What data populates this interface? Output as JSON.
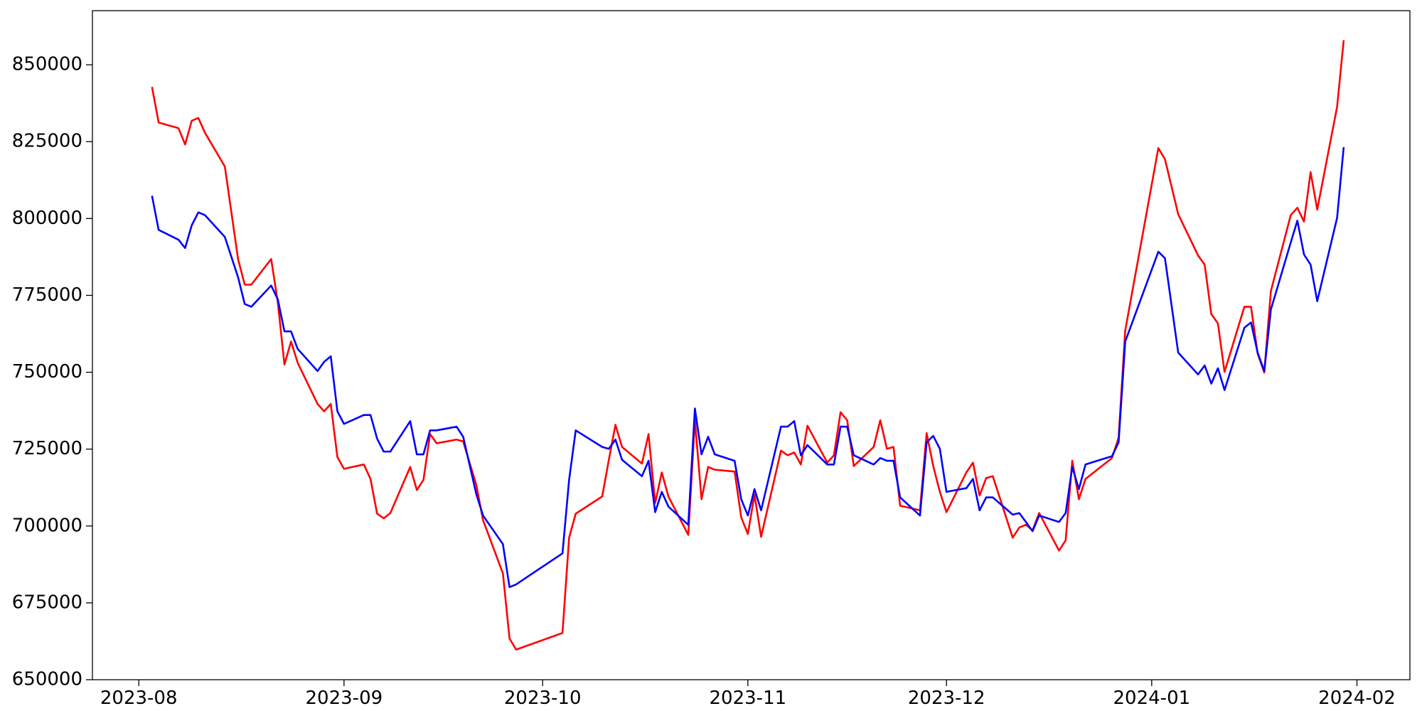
{
  "chart_data": {
    "type": "line",
    "x": [
      2,
      3,
      6,
      7,
      8,
      9,
      10,
      13,
      15,
      16,
      17,
      20,
      21,
      22,
      23,
      24,
      27,
      28,
      29,
      30,
      31,
      34,
      35,
      36,
      37,
      38,
      41,
      42,
      43,
      44,
      45,
      48,
      49,
      51,
      52,
      55,
      56,
      57,
      64,
      65,
      66,
      70,
      71,
      72,
      73,
      76,
      77,
      78,
      79,
      80,
      83,
      84,
      85,
      86,
      87,
      90,
      91,
      92,
      93,
      94,
      97,
      98,
      99,
      100,
      101,
      104,
      105,
      106,
      107,
      108,
      111,
      112,
      113,
      114,
      115,
      118,
      119,
      120,
      121,
      122,
      125,
      126,
      127,
      128,
      129,
      132,
      133,
      134,
      135,
      136,
      139,
      140,
      141,
      142,
      143,
      147,
      148,
      149,
      154,
      155,
      157,
      160,
      161,
      162,
      163,
      164,
      167,
      168,
      169,
      170,
      171,
      174,
      175,
      176,
      177,
      178,
      181,
      182
    ],
    "series": [
      {
        "color": "#ff0000",
        "values": [
          842800,
          831200,
          829400,
          824100,
          831800,
          832700,
          827900,
          816900,
          786800,
          778500,
          778500,
          786800,
          772800,
          752500,
          760000,
          753100,
          739700,
          737300,
          739700,
          722400,
          718600,
          720000,
          715300,
          704000,
          702500,
          704200,
          719200,
          711700,
          715000,
          729900,
          726900,
          728100,
          727500,
          713200,
          701900,
          684600,
          663400,
          659800,
          665200,
          696200,
          704000,
          709600,
          721500,
          732900,
          725700,
          720300,
          729900,
          707500,
          717400,
          709600,
          697100,
          734400,
          708700,
          719200,
          718300,
          717700,
          702800,
          697400,
          710200,
          696500,
          724500,
          723000,
          723900,
          720000,
          732600,
          720600,
          723000,
          737000,
          734400,
          719500,
          725700,
          734400,
          725100,
          725700,
          706600,
          705100,
          730200,
          719500,
          711100,
          704500,
          717400,
          720600,
          709900,
          715600,
          716200,
          696200,
          699500,
          700400,
          698600,
          704200,
          692000,
          695300,
          721200,
          708700,
          715300,
          722100,
          728700,
          763600,
          822900,
          819300,
          801400,
          788000,
          785000,
          768900,
          765900,
          750100,
          771300,
          771300,
          756100,
          749900,
          776400,
          801100,
          803500,
          799000,
          815100,
          802900,
          836300,
          858000
        ]
      },
      {
        "color": "#0000ff",
        "values": [
          807400,
          796300,
          793100,
          790400,
          797800,
          802000,
          801100,
          794000,
          780900,
          772200,
          771300,
          778200,
          773700,
          763300,
          763300,
          757600,
          750400,
          753400,
          755200,
          737300,
          733200,
          736100,
          736100,
          728400,
          724200,
          724200,
          734100,
          723300,
          723300,
          731100,
          731100,
          732300,
          729000,
          710200,
          703400,
          694100,
          680100,
          681000,
          691100,
          715000,
          731100,
          725700,
          725100,
          728100,
          721500,
          716200,
          721200,
          704500,
          711100,
          706300,
          700400,
          738200,
          723300,
          729000,
          723300,
          721200,
          708700,
          703400,
          712000,
          705100,
          732300,
          732300,
          734100,
          723000,
          726300,
          720000,
          720000,
          732300,
          732300,
          723000,
          720000,
          722100,
          721200,
          721200,
          709300,
          703400,
          727200,
          729300,
          725100,
          711100,
          712300,
          715300,
          705100,
          709300,
          709300,
          703700,
          704200,
          701300,
          698300,
          703400,
          701300,
          704200,
          719200,
          712000,
          720000,
          722700,
          727200,
          760000,
          789200,
          787100,
          756400,
          749300,
          752200,
          746300,
          751300,
          744200,
          764500,
          766200,
          756400,
          750400,
          770400,
          792200,
          799300,
          788300,
          785000,
          773100,
          800200,
          823200
        ]
      }
    ],
    "xlim": [
      -7,
      192
    ],
    "xticks": [
      {
        "value": 0,
        "label": "2023-08"
      },
      {
        "value": 31,
        "label": "2023-09"
      },
      {
        "value": 61,
        "label": "2023-10"
      },
      {
        "value": 92,
        "label": "2023-11"
      },
      {
        "value": 122,
        "label": "2023-12"
      },
      {
        "value": 153,
        "label": "2024-01"
      },
      {
        "value": 184,
        "label": "2024-02"
      }
    ],
    "ylim": [
      650000,
      867600
    ],
    "yticks": [
      650000,
      675000,
      700000,
      725000,
      750000,
      775000,
      800000,
      825000,
      850000
    ],
    "grid": false
  }
}
